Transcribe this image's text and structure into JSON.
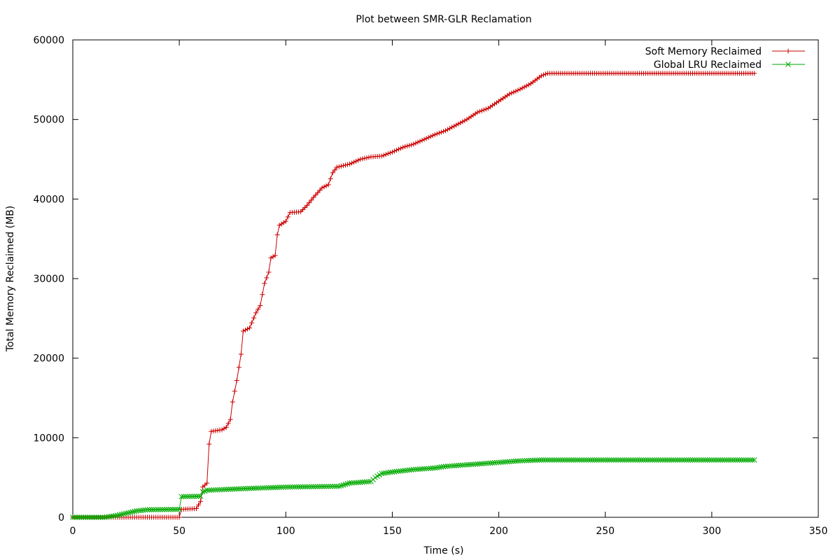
{
  "chart_data": {
    "type": "line",
    "title": "Plot between SMR-GLR Reclamation",
    "xlabel": "Time (s)",
    "ylabel": "Total Memory Reclaimed (MB)",
    "xlim": [
      0,
      350
    ],
    "ylim": [
      0,
      60000
    ],
    "x_ticks": [
      0,
      50,
      100,
      150,
      200,
      250,
      300,
      350
    ],
    "y_ticks": [
      0,
      10000,
      20000,
      30000,
      40000,
      50000,
      60000
    ],
    "legend_position": "top-right",
    "grid": false,
    "series": [
      {
        "name": "Soft Memory Reclaimed",
        "color": "#cc0000",
        "marker": "plus",
        "sample_interval": 1,
        "anchors": [
          [
            0,
            0
          ],
          [
            50,
            0
          ],
          [
            51,
            1000
          ],
          [
            58,
            1100
          ],
          [
            60,
            2000
          ],
          [
            61,
            3800
          ],
          [
            63,
            4300
          ],
          [
            64,
            9200
          ],
          [
            65,
            10800
          ],
          [
            70,
            11000
          ],
          [
            72,
            11300
          ],
          [
            74,
            12300
          ],
          [
            75,
            14500
          ],
          [
            77,
            17200
          ],
          [
            79,
            20500
          ],
          [
            80,
            23400
          ],
          [
            83,
            23800
          ],
          [
            86,
            25700
          ],
          [
            88,
            26600
          ],
          [
            90,
            29400
          ],
          [
            92,
            30800
          ],
          [
            93,
            32600
          ],
          [
            95,
            32900
          ],
          [
            96,
            35500
          ],
          [
            97,
            36700
          ],
          [
            100,
            37200
          ],
          [
            102,
            38300
          ],
          [
            107,
            38400
          ],
          [
            110,
            39200
          ],
          [
            113,
            40200
          ],
          [
            117,
            41400
          ],
          [
            120,
            41800
          ],
          [
            122,
            43300
          ],
          [
            124,
            44000
          ],
          [
            130,
            44400
          ],
          [
            135,
            45000
          ],
          [
            140,
            45300
          ],
          [
            145,
            45400
          ],
          [
            150,
            45900
          ],
          [
            155,
            46500
          ],
          [
            160,
            46900
          ],
          [
            165,
            47500
          ],
          [
            170,
            48100
          ],
          [
            175,
            48600
          ],
          [
            180,
            49300
          ],
          [
            185,
            50000
          ],
          [
            190,
            50900
          ],
          [
            195,
            51400
          ],
          [
            200,
            52300
          ],
          [
            205,
            53200
          ],
          [
            210,
            53800
          ],
          [
            215,
            54500
          ],
          [
            220,
            55500
          ],
          [
            223,
            55800
          ],
          [
            320,
            55800
          ]
        ]
      },
      {
        "name": "Global LRU Reclaimed",
        "color": "#00aa00",
        "marker": "cross",
        "sample_interval": 1,
        "anchors": [
          [
            0,
            0
          ],
          [
            15,
            0
          ],
          [
            20,
            200
          ],
          [
            25,
            500
          ],
          [
            30,
            800
          ],
          [
            35,
            950
          ],
          [
            50,
            1000
          ],
          [
            51,
            2600
          ],
          [
            60,
            2650
          ],
          [
            61,
            3200
          ],
          [
            63,
            3400
          ],
          [
            80,
            3600
          ],
          [
            100,
            3800
          ],
          [
            125,
            3900
          ],
          [
            130,
            4300
          ],
          [
            140,
            4500
          ],
          [
            142,
            5000
          ],
          [
            145,
            5500
          ],
          [
            150,
            5700
          ],
          [
            160,
            6000
          ],
          [
            170,
            6200
          ],
          [
            175,
            6400
          ],
          [
            190,
            6700
          ],
          [
            200,
            6900
          ],
          [
            210,
            7100
          ],
          [
            220,
            7200
          ],
          [
            320,
            7200
          ]
        ]
      }
    ]
  }
}
